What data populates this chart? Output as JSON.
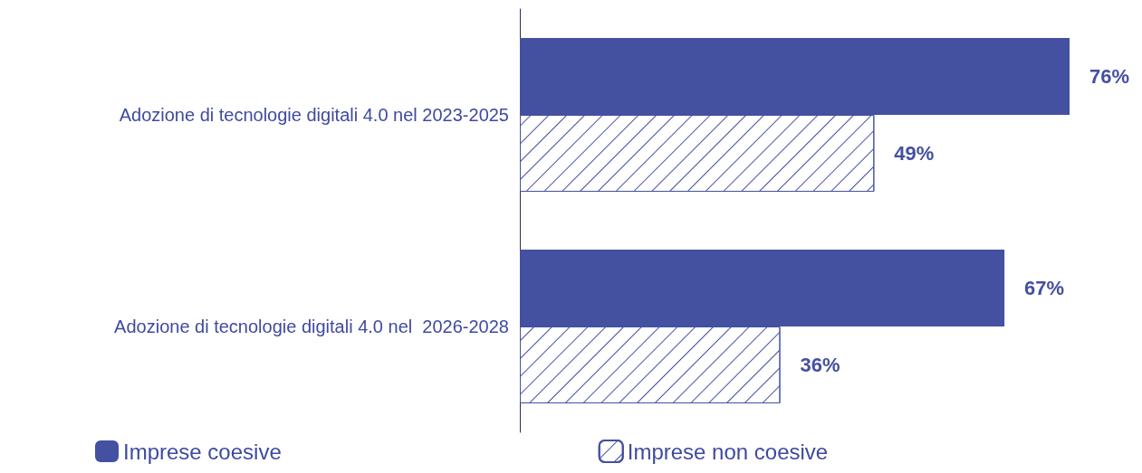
{
  "chart_data": {
    "type": "bar",
    "orientation": "horizontal",
    "categories": [
      "Adozione di tecnologie digitali 4.0 nel 2023-2025",
      "Adozione di tecnologie digitali 4.0 nel  2026-2028"
    ],
    "series": [
      {
        "name": "Imprese coesive",
        "color": "#4450a0",
        "values": [
          76,
          67
        ],
        "value_labels": [
          "76%",
          "67%"
        ]
      },
      {
        "name": "Imprese non coesive",
        "color": "#4450a0",
        "values": [
          49,
          36
        ],
        "value_labels": [
          "49%",
          "36%"
        ]
      }
    ],
    "legend": "bottom"
  }
}
